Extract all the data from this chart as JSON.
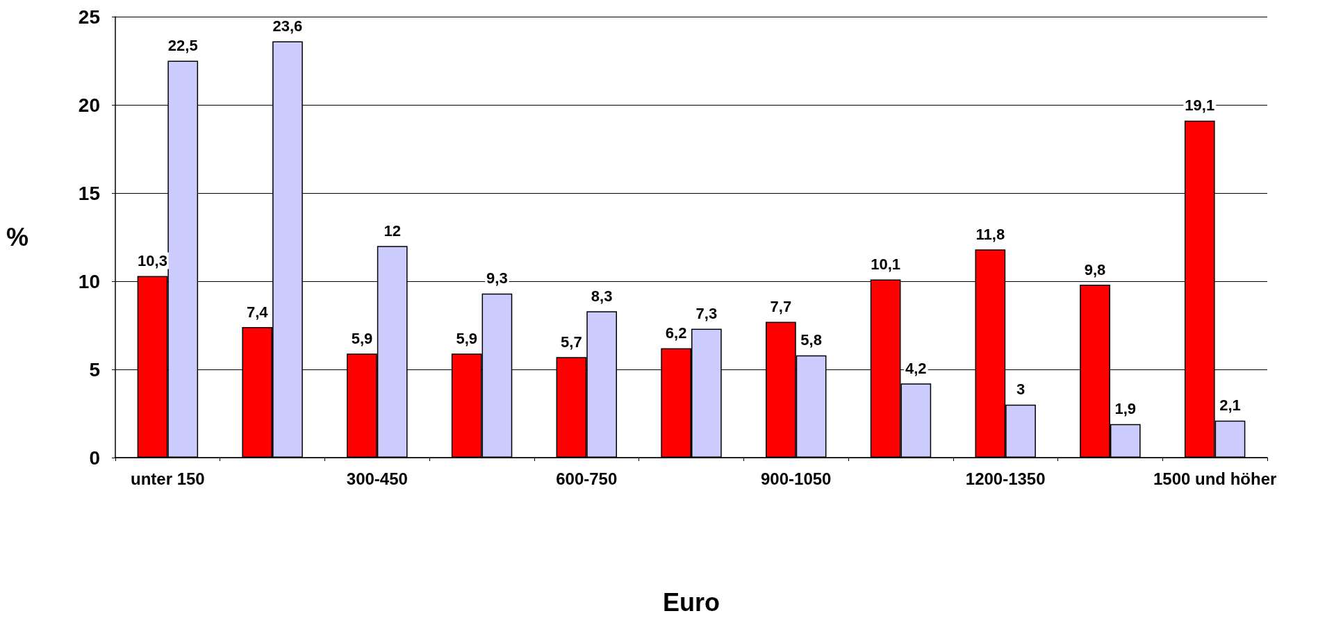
{
  "chart_data": {
    "type": "bar",
    "xlabel": "Euro",
    "ylabel": "%",
    "categories": [
      "unter 150",
      null,
      "300-450",
      null,
      "600-750",
      null,
      "900-1050",
      null,
      "1200-1350",
      null,
      "1500 und höher"
    ],
    "series": [
      {
        "color": "#ff0000",
        "values": [
          10.3,
          7.4,
          5.9,
          5.9,
          5.7,
          6.2,
          7.7,
          10.1,
          11.8,
          9.8,
          19.1
        ],
        "value_labels": [
          "10,3",
          "7,4",
          "5,9",
          "5,9",
          "5,7",
          "6,2",
          "7,7",
          "10,1",
          "11,8",
          "9,8",
          "19,1"
        ]
      },
      {
        "color": "#ccccff",
        "values": [
          22.5,
          23.6,
          12,
          9.3,
          8.3,
          7.3,
          5.8,
          4.2,
          3,
          1.9,
          2.1
        ],
        "value_labels": [
          "22,5",
          "23,6",
          "12",
          "9,3",
          "8,3",
          "7,3",
          "5,8",
          "4,2",
          "3",
          "1,9",
          "2,1"
        ]
      }
    ],
    "ylim": [
      0,
      25
    ],
    "yticks": [
      0,
      5,
      10,
      15,
      20,
      25
    ],
    "grid": "y"
  }
}
